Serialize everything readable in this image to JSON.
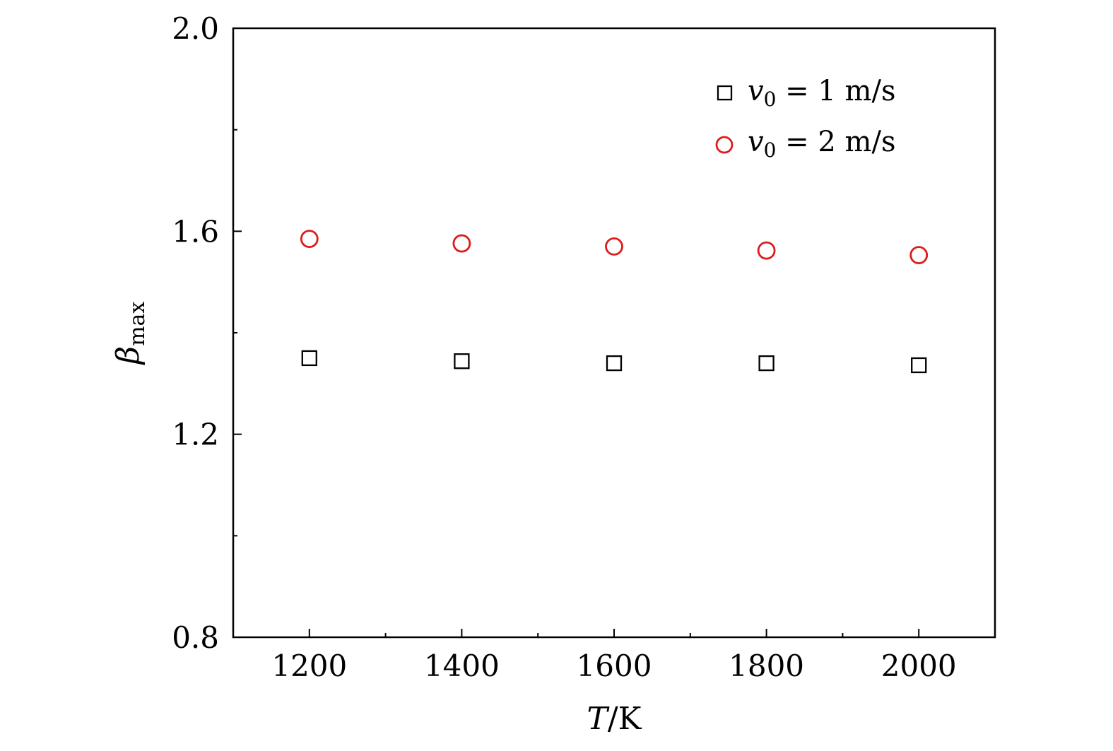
{
  "chart_data": {
    "type": "scatter",
    "title": "",
    "xlabel": {
      "var": "T",
      "unit": "/K"
    },
    "ylabel": {
      "var": "β",
      "sub": "max"
    },
    "xlim": [
      1100,
      2100
    ],
    "ylim": [
      0.8,
      2.0
    ],
    "x_major_ticks": [
      1200,
      1400,
      1600,
      1800,
      2000
    ],
    "x_tick_labels": [
      "1200",
      "1400",
      "1600",
      "1800",
      "2000"
    ],
    "x_minor_ticks": [
      1300,
      1500,
      1700,
      1900
    ],
    "y_major_ticks": [
      0.8,
      1.2,
      1.6,
      2.0
    ],
    "y_tick_labels": [
      "0.8",
      "1.2",
      "1.6",
      "2.0"
    ],
    "y_minor_ticks": [
      1.0,
      1.4,
      1.8
    ],
    "grid": false,
    "legend_position": "top-right",
    "series": [
      {
        "legend": {
          "var": "v",
          "sub": "0",
          "rest": " = 1  m/s"
        },
        "marker": "square",
        "color": "#000000",
        "x": [
          1200,
          1400,
          1600,
          1800,
          2000
        ],
        "y": [
          1.35,
          1.344,
          1.34,
          1.34,
          1.336
        ]
      },
      {
        "legend": {
          "var": "v",
          "sub": "0",
          "rest": " = 2  m/s"
        },
        "marker": "circle",
        "color": "#dd1c1c",
        "x": [
          1200,
          1400,
          1600,
          1800,
          2000
        ],
        "y": [
          1.585,
          1.576,
          1.57,
          1.562,
          1.553
        ]
      }
    ]
  }
}
